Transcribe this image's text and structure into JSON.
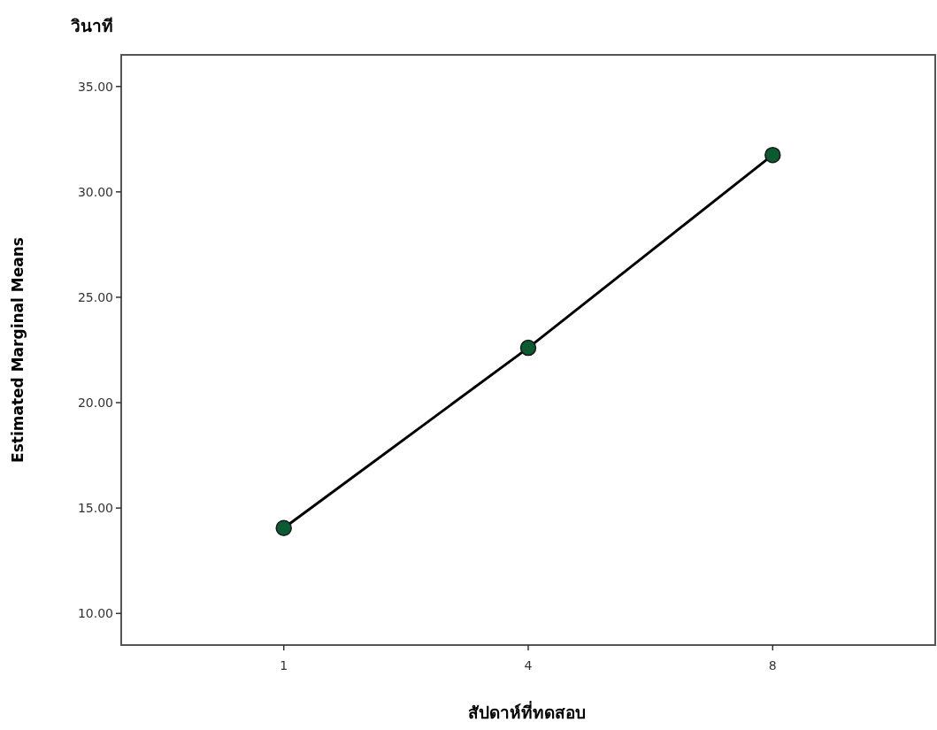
{
  "chart_data": {
    "type": "line",
    "title": "วินาที",
    "xlabel": "สัปดาห์ที่ทดสอบ",
    "ylabel": "Estimated Marginal Means",
    "categories": [
      "1",
      "4",
      "8"
    ],
    "series": [
      {
        "color": "#000000",
        "colors": [
          "#0b5a30",
          "#0b5a30",
          "#0b5a30"
        ],
        "values": [
          14.05,
          22.6,
          31.75
        ]
      }
    ],
    "ylim": [
      8.5,
      36.5
    ],
    "yticks": [
      {
        "value": 10,
        "label": "10.00"
      },
      {
        "value": 15,
        "label": "15.00"
      },
      {
        "value": 20,
        "label": "20.00"
      },
      {
        "value": 25,
        "label": "25.00"
      },
      {
        "value": 30,
        "label": "30.00"
      },
      {
        "value": 35,
        "label": "35.00"
      }
    ],
    "marker": "circle",
    "line_style": "solid",
    "grid": false
  }
}
